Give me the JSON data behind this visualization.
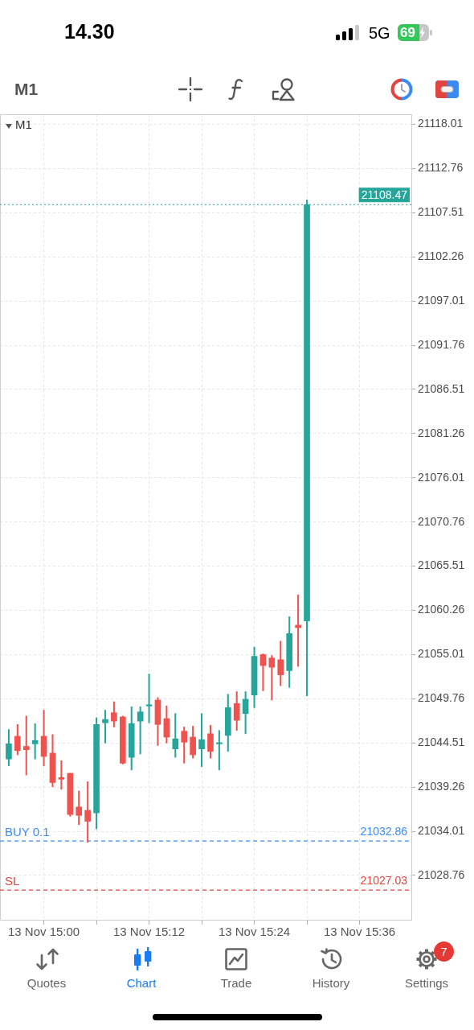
{
  "chart_data": {
    "type": "candlestick",
    "title": "M1",
    "subtitle": "M1",
    "annotations": [
      "14.30",
      "5G",
      "69",
      "Quotes",
      "Chart",
      "Trade",
      "History",
      "Settings",
      "7",
      {
        "text": "21108.47",
        "y": 21108.47
      },
      {
        "text": "21032.86",
        "y": 21032.86
      },
      {
        "text": "21027.03",
        "y": 21027.03
      }
    ],
    "x": [
      "--11-13T14:56",
      "--11-13T14:57",
      "--11-13T14:58",
      "--11-13T14:59",
      "--11-13T15:00",
      "--11-13T15:01",
      "--11-13T15:02",
      "--11-13T15:03",
      "--11-13T15:04",
      "--11-13T15:05",
      "--11-13T15:06",
      "--11-13T15:07",
      "--11-13T15:08",
      "--11-13T15:09",
      "--11-13T15:10",
      "--11-13T15:11",
      "--11-13T15:12",
      "--11-13T15:13",
      "--11-13T15:14",
      "--11-13T15:15",
      "--11-13T15:16",
      "--11-13T15:17",
      "--11-13T15:18",
      "--11-13T15:19",
      "--11-13T15:20",
      "--11-13T15:21",
      "--11-13T15:22",
      "--11-13T15:23",
      "--11-13T15:24",
      "--11-13T15:25",
      "--11-13T15:26",
      "--11-13T15:27",
      "--11-13T15:28",
      "--11-13T15:29",
      "--11-13T15:30"
    ],
    "ohlc": [
      [
        21042.6,
        21046.1,
        21041.8,
        21044.4
      ],
      [
        21045.3,
        21046.7,
        21043.1,
        21043.6
      ],
      [
        21044.1,
        21047.7,
        21040.7,
        21043.7
      ],
      [
        21044.4,
        21046.8,
        21042.6,
        21044.8
      ],
      [
        21045.3,
        21048.4,
        21041.8,
        21042.9
      ],
      [
        21043.3,
        21045.5,
        21039.3,
        21039.8
      ],
      [
        21040.4,
        21042.4,
        21039.0,
        21040.2
      ],
      [
        21040.9,
        21040.9,
        21035.8,
        21036.0
      ],
      [
        21036.9,
        21038.8,
        21034.8,
        21035.9
      ],
      [
        21036.5,
        21039.9,
        21032.7,
        21035.2
      ],
      [
        21036.2,
        21047.5,
        21034.3,
        21046.7
      ],
      [
        21046.9,
        21048.4,
        21044.5,
        21047.3
      ],
      [
        21048.1,
        21049.4,
        21046.4,
        21047.1
      ],
      [
        21047.6,
        21047.7,
        21042.0,
        21042.1
      ],
      [
        21042.8,
        21048.8,
        21041.3,
        21046.8
      ],
      [
        21047.1,
        21048.8,
        21043.2,
        21048.2
      ],
      [
        21048.9,
        21052.7,
        21046.9,
        21049.0
      ],
      [
        21049.6,
        21049.9,
        21044.2,
        21046.7
      ],
      [
        21047.4,
        21048.9,
        21044.5,
        21045.2
      ],
      [
        21043.8,
        21048.0,
        21042.8,
        21045.0
      ],
      [
        21045.9,
        21046.4,
        21042.1,
        21044.6
      ],
      [
        21045.2,
        21046.5,
        21042.7,
        21043.1
      ],
      [
        21043.8,
        21048.0,
        21041.7,
        21044.9
      ],
      [
        21045.6,
        21046.6,
        21042.7,
        21043.5
      ],
      [
        21044.4,
        21046.0,
        21041.3,
        21044.5
      ],
      [
        21045.4,
        21050.3,
        21043.5,
        21048.7
      ],
      [
        21049.2,
        21050.6,
        21046.0,
        21047.2
      ],
      [
        21048.0,
        21050.6,
        21045.6,
        21049.7
      ],
      [
        21050.2,
        21055.9,
        21048.7,
        21054.8
      ],
      [
        21055.0,
        21055.1,
        21050.7,
        21053.7
      ],
      [
        21054.6,
        21054.9,
        21049.6,
        21053.5
      ],
      [
        21054.4,
        21056.6,
        21051.3,
        21052.6
      ],
      [
        21053.1,
        21059.5,
        21051.1,
        21057.5
      ],
      [
        21058.5,
        21062.1,
        21053.6,
        21058.2
      ],
      [
        21059.0,
        21109.0,
        21050.1,
        21108.47
      ]
    ],
    "colors": [
      "#26a69a",
      "#ef5350",
      "#ef5350",
      "#26a69a",
      "#ef5350",
      "#ef5350",
      "#ef5350",
      "#ef5350",
      "#ef5350",
      "#ef5350",
      "#26a69a",
      "#26a69a",
      "#ef5350",
      "#ef5350",
      "#26a69a",
      "#26a69a",
      "#26a69a",
      "#ef5350",
      "#ef5350",
      "#26a69a",
      "#ef5350",
      "#ef5350",
      "#26a69a",
      "#ef5350",
      "#26a69a",
      "#26a69a",
      "#ef5350",
      "#26a69a",
      "#26a69a",
      "#ef5350",
      "#ef5350",
      "#ef5350",
      "#26a69a",
      "#ef5350",
      "#26a69a"
    ],
    "xlim": [
      "--11-13T14:55",
      "--11-13T15:42"
    ],
    "xticks": [
      {
        "value": "--11-13T15:00",
        "label": "13 Nov 15:00"
      },
      {
        "value": "--11-13T15:06",
        "label": null
      },
      {
        "value": "--11-13T15:12",
        "label": "13 Nov 15:12"
      },
      {
        "value": "--11-13T15:18",
        "label": null
      },
      {
        "value": "--11-13T15:24",
        "label": "13 Nov 15:24"
      },
      {
        "value": "--11-13T15:30",
        "label": null
      },
      {
        "value": "--11-13T15:36",
        "label": "13 Nov 15:36"
      }
    ],
    "ylim": [
      21023.5,
      21119.2
    ],
    "yticks": [
      21028.76,
      21034.01,
      21039.26,
      21044.51,
      21049.76,
      21055.01,
      21060.26,
      21065.51,
      21070.76,
      21076.01,
      21081.26,
      21086.51,
      21091.76,
      21097.01,
      21102.26,
      21107.51,
      21112.76,
      21118.01
    ],
    "ref_lines": [
      {
        "axis": "y",
        "value": 21108.47,
        "color": "#26a69a",
        "line_style": "dotted"
      },
      {
        "axis": "y",
        "value": 21032.86,
        "label": "BUY 0.1",
        "color": "#3d8bf0",
        "line_style": "dashed"
      },
      {
        "axis": "y",
        "value": 21027.03,
        "label": "SL",
        "color": "#e0463f",
        "line_style": "dashed"
      }
    ],
    "grid": true
  }
}
